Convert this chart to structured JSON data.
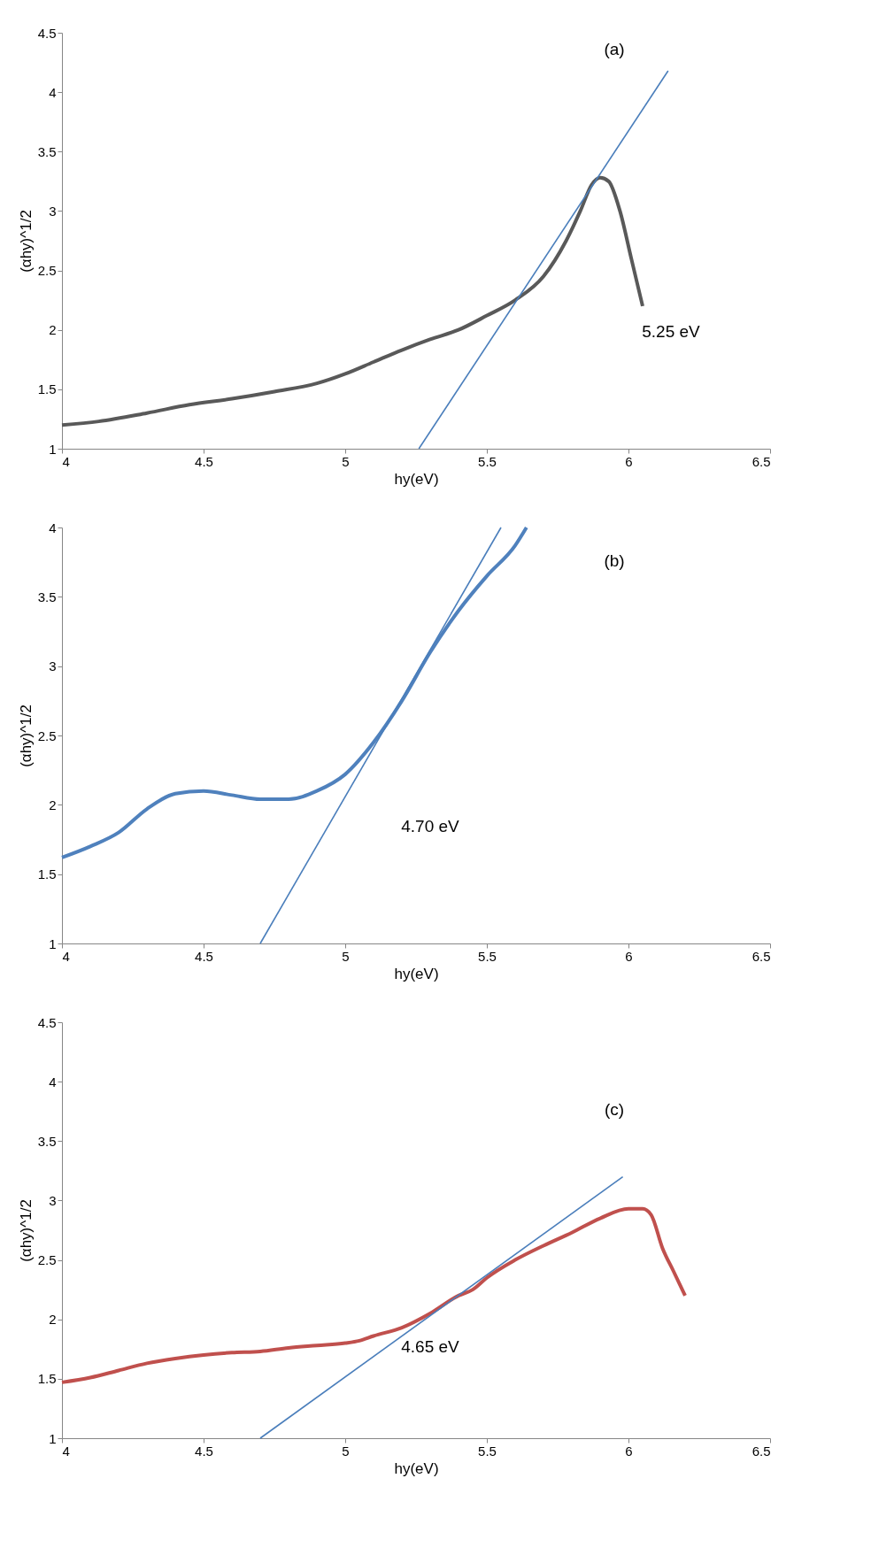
{
  "chart_data": [
    {
      "type": "line",
      "xlabel": "hy(eV)",
      "ylabel": "(αhy)^1/2",
      "xlim": [
        4,
        6.5
      ],
      "ylim": [
        1,
        4.5
      ],
      "xticks": [
        4,
        4.5,
        5,
        5.5,
        6,
        6.5
      ],
      "yticks": [
        1,
        1.5,
        2,
        2.5,
        3,
        3.5,
        4,
        4.5
      ],
      "grid": false,
      "marker": "none",
      "line_style": "solid",
      "series": [
        {
          "color": "#595959",
          "x": [
            4,
            4.13,
            4.3,
            4.45,
            4.6,
            4.75,
            4.9,
            5.0,
            5.1,
            5.2,
            5.3,
            5.4,
            5.5,
            5.6,
            5.7,
            5.78,
            5.83,
            5.87,
            5.9,
            5.93,
            5.97,
            6.01,
            6.05
          ],
          "values": [
            1.2,
            1.23,
            1.3,
            1.37,
            1.42,
            1.48,
            1.55,
            1.63,
            1.73,
            1.83,
            1.92,
            2.0,
            2.12,
            2.25,
            2.45,
            2.75,
            3.0,
            3.22,
            3.28,
            3.25,
            3.0,
            2.6,
            2.2
          ]
        },
        {
          "type": "line",
          "color": "#4a7ebb",
          "x": [
            5.26,
            6.14
          ],
          "values": [
            1,
            4.18
          ]
        }
      ],
      "annotations": [
        "(a)",
        "5.25 eV"
      ]
    },
    {
      "type": "line",
      "xlabel": "hy(eV)",
      "ylabel": "(αhy)^1/2",
      "xlim": [
        4,
        6.5
      ],
      "ylim": [
        1,
        4
      ],
      "xticks": [
        4,
        4.5,
        5,
        5.5,
        6,
        6.5
      ],
      "yticks": [
        1,
        1.5,
        2,
        2.5,
        3,
        3.5,
        4
      ],
      "grid": false,
      "marker": "none",
      "line_style": "solid",
      "series": [
        {
          "color": "#4f81bd",
          "x": [
            4,
            4.1,
            4.2,
            4.3,
            4.4,
            4.5,
            4.6,
            4.7,
            4.8,
            4.9,
            5.0,
            5.1,
            5.2,
            5.3,
            5.4,
            5.5,
            5.6,
            5.64
          ],
          "values": [
            1.62,
            1.7,
            1.8,
            1.97,
            2.08,
            2.1,
            2.07,
            2.04,
            2.04,
            2.1,
            2.22,
            2.45,
            2.75,
            3.1,
            3.4,
            3.65,
            3.87,
            4.0
          ]
        },
        {
          "type": "line",
          "color": "#4a7ebb",
          "x": [
            4.7,
            5.55
          ],
          "values": [
            1,
            4
          ]
        }
      ],
      "annotations": [
        "(b)",
        "4.70 eV"
      ]
    },
    {
      "type": "line",
      "xlabel": "hy(eV)",
      "ylabel": "(αhy)^1/2",
      "xlim": [
        4,
        6.5
      ],
      "ylim": [
        1,
        4.5
      ],
      "xticks": [
        4,
        4.5,
        5,
        5.5,
        6,
        6.5
      ],
      "yticks": [
        1,
        1.5,
        2,
        2.5,
        3,
        3.5,
        4,
        4.5
      ],
      "grid": false,
      "marker": "none",
      "line_style": "solid",
      "series": [
        {
          "color": "#c0504d",
          "x": [
            4,
            4.1,
            4.2,
            4.3,
            4.4,
            4.5,
            4.6,
            4.7,
            4.8,
            4.9,
            5.0,
            5.05,
            5.1,
            5.2,
            5.3,
            5.4,
            5.45,
            5.5,
            5.6,
            5.7,
            5.8,
            5.9,
            6.0,
            6.05,
            6.08,
            6.12,
            6.16,
            6.2
          ],
          "values": [
            1.47,
            1.51,
            1.57,
            1.63,
            1.67,
            1.7,
            1.72,
            1.73,
            1.76,
            1.78,
            1.8,
            1.82,
            1.86,
            1.93,
            2.05,
            2.2,
            2.25,
            2.35,
            2.5,
            2.62,
            2.73,
            2.85,
            2.93,
            2.93,
            2.88,
            2.6,
            2.4,
            2.2
          ]
        },
        {
          "type": "line",
          "color": "#4a7ebb",
          "x": [
            4.7,
            5.98
          ],
          "values": [
            1,
            3.2
          ]
        }
      ],
      "annotations": [
        "(c)",
        "4.65 eV"
      ]
    }
  ]
}
